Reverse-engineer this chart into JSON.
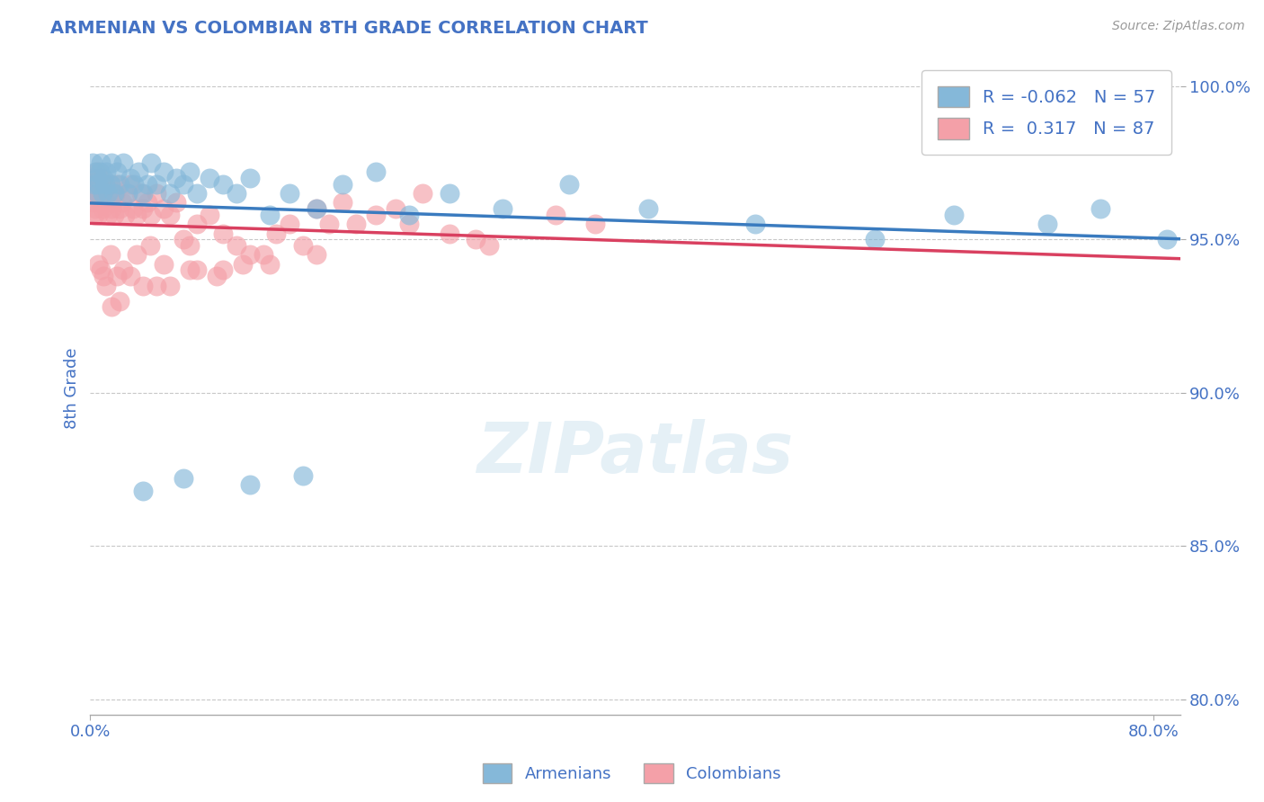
{
  "title": "ARMENIAN VS COLOMBIAN 8TH GRADE CORRELATION CHART",
  "source_text": "Source: ZipAtlas.com",
  "ylabel": "8th Grade",
  "xlim": [
    0.0,
    0.82
  ],
  "ylim": [
    0.795,
    1.008
  ],
  "yticks": [
    0.8,
    0.85,
    0.9,
    0.95,
    1.0
  ],
  "ytick_labels": [
    "80.0%",
    "85.0%",
    "90.0%",
    "95.0%",
    "100.0%"
  ],
  "xticks": [
    0.0,
    0.8
  ],
  "xtick_labels": [
    "0.0%",
    "80.0%"
  ],
  "armenian_R": -0.062,
  "armenian_N": 57,
  "colombian_R": 0.317,
  "colombian_N": 87,
  "armenian_color": "#85b8d9",
  "colombian_color": "#f4a0a8",
  "armenian_line_color": "#3a7bbf",
  "colombian_line_color": "#d94060",
  "background_color": "#ffffff",
  "grid_color": "#c8c8c8",
  "title_color": "#4472c4",
  "axis_label_color": "#4472c4",
  "tick_color": "#4472c4",
  "armenian_x": [
    0.002,
    0.003,
    0.004,
    0.005,
    0.005,
    0.006,
    0.007,
    0.008,
    0.009,
    0.01,
    0.011,
    0.012,
    0.013,
    0.015,
    0.016,
    0.018,
    0.02,
    0.022,
    0.025,
    0.028,
    0.03,
    0.033,
    0.036,
    0.04,
    0.043,
    0.046,
    0.05,
    0.055,
    0.06,
    0.065,
    0.07,
    0.075,
    0.08,
    0.09,
    0.1,
    0.11,
    0.12,
    0.135,
    0.15,
    0.17,
    0.19,
    0.215,
    0.24,
    0.27,
    0.31,
    0.36,
    0.42,
    0.5,
    0.59,
    0.65,
    0.72,
    0.76,
    0.81,
    0.12,
    0.16,
    0.07,
    0.04
  ],
  "armenian_y": [
    0.975,
    0.968,
    0.972,
    0.965,
    0.97,
    0.968,
    0.972,
    0.975,
    0.965,
    0.97,
    0.968,
    0.972,
    0.965,
    0.968,
    0.975,
    0.965,
    0.972,
    0.968,
    0.975,
    0.965,
    0.97,
    0.968,
    0.972,
    0.965,
    0.968,
    0.975,
    0.968,
    0.972,
    0.965,
    0.97,
    0.968,
    0.972,
    0.965,
    0.97,
    0.968,
    0.965,
    0.97,
    0.958,
    0.965,
    0.96,
    0.968,
    0.972,
    0.958,
    0.965,
    0.96,
    0.968,
    0.96,
    0.955,
    0.95,
    0.958,
    0.955,
    0.96,
    0.95,
    0.87,
    0.873,
    0.872,
    0.868
  ],
  "colombian_x": [
    0.001,
    0.002,
    0.002,
    0.003,
    0.003,
    0.004,
    0.005,
    0.005,
    0.006,
    0.006,
    0.007,
    0.008,
    0.008,
    0.009,
    0.01,
    0.011,
    0.012,
    0.013,
    0.014,
    0.015,
    0.016,
    0.017,
    0.018,
    0.019,
    0.02,
    0.022,
    0.024,
    0.026,
    0.028,
    0.03,
    0.032,
    0.035,
    0.038,
    0.04,
    0.043,
    0.046,
    0.05,
    0.055,
    0.06,
    0.065,
    0.07,
    0.075,
    0.08,
    0.09,
    0.1,
    0.11,
    0.12,
    0.135,
    0.15,
    0.17,
    0.19,
    0.215,
    0.24,
    0.27,
    0.16,
    0.14,
    0.2,
    0.23,
    0.3,
    0.35,
    0.18,
    0.25,
    0.055,
    0.045,
    0.025,
    0.015,
    0.02,
    0.012,
    0.008,
    0.006,
    0.01,
    0.035,
    0.06,
    0.08,
    0.095,
    0.115,
    0.13,
    0.075,
    0.04,
    0.03,
    0.022,
    0.016,
    0.05,
    0.1,
    0.17,
    0.29,
    0.38
  ],
  "colombian_y": [
    0.968,
    0.962,
    0.97,
    0.958,
    0.965,
    0.96,
    0.968,
    0.972,
    0.958,
    0.965,
    0.962,
    0.97,
    0.968,
    0.96,
    0.965,
    0.968,
    0.962,
    0.958,
    0.965,
    0.968,
    0.96,
    0.962,
    0.958,
    0.965,
    0.968,
    0.96,
    0.962,
    0.958,
    0.965,
    0.968,
    0.96,
    0.958,
    0.965,
    0.96,
    0.962,
    0.958,
    0.965,
    0.96,
    0.958,
    0.962,
    0.95,
    0.948,
    0.955,
    0.958,
    0.952,
    0.948,
    0.945,
    0.942,
    0.955,
    0.96,
    0.962,
    0.958,
    0.955,
    0.952,
    0.948,
    0.952,
    0.955,
    0.96,
    0.948,
    0.958,
    0.955,
    0.965,
    0.942,
    0.948,
    0.94,
    0.945,
    0.938,
    0.935,
    0.94,
    0.942,
    0.938,
    0.945,
    0.935,
    0.94,
    0.938,
    0.942,
    0.945,
    0.94,
    0.935,
    0.938,
    0.93,
    0.928,
    0.935,
    0.94,
    0.945,
    0.95,
    0.955
  ]
}
